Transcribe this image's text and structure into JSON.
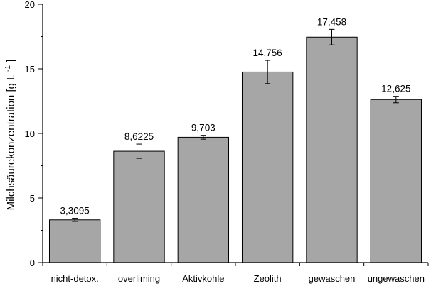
{
  "chart_data": {
    "type": "bar",
    "title": "",
    "xlabel": "",
    "ylabel": "Milchsäurekonzentration [g L",
    "ylabel_sup": "-1",
    "ylabel_close": "]",
    "ylim": [
      0,
      20
    ],
    "yticks": [
      0,
      5,
      10,
      15,
      20
    ],
    "grid": false,
    "bar_color": "#a6a6a6",
    "categories": [
      "nicht-detox.",
      "overliming",
      "Aktivkohle",
      "Zeolith",
      "gewaschen",
      "ungewaschen"
    ],
    "values": [
      3.3095,
      8.6225,
      9.703,
      14.756,
      17.458,
      12.625
    ],
    "value_labels": [
      "3,3095",
      "8,6225",
      "9,703",
      "14,756",
      "17,458",
      "12,625"
    ],
    "errors": [
      0.12,
      0.55,
      0.15,
      0.9,
      0.6,
      0.25
    ]
  }
}
